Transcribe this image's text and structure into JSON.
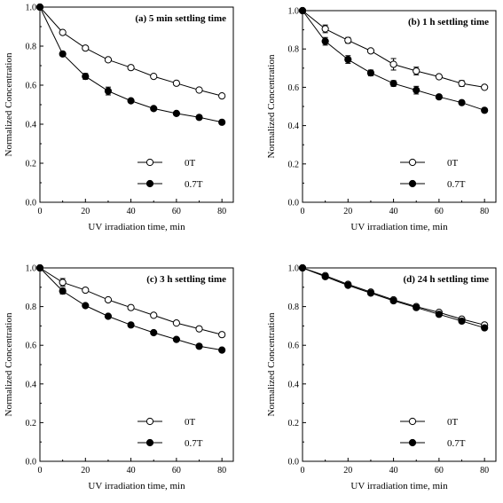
{
  "chart_data": [
    {
      "type": "line",
      "title": "(a) 5 min settling time",
      "xlabel": "UV irradiation time, min",
      "ylabel": "Normalized Concentration",
      "xlim": [
        0,
        85
      ],
      "ylim": [
        0,
        1.0
      ],
      "xticks": [
        "0",
        "20",
        "40",
        "60",
        "80"
      ],
      "yticks": [
        "0.0",
        "0.2",
        "0.4",
        "0.6",
        "0.8",
        "1.0"
      ],
      "x": [
        0,
        10,
        20,
        30,
        40,
        50,
        60,
        70,
        80
      ],
      "series": [
        {
          "name": "0T",
          "marker": "open-circle",
          "values": [
            1.0,
            0.87,
            0.79,
            0.73,
            0.69,
            0.645,
            0.61,
            0.575,
            0.545
          ],
          "errors": [
            0,
            0,
            0,
            0,
            0,
            0,
            0,
            0,
            0
          ]
        },
        {
          "name": "0.7T",
          "marker": "filled-circle",
          "values": [
            1.0,
            0.76,
            0.645,
            0.57,
            0.52,
            0.48,
            0.455,
            0.435,
            0.41
          ],
          "errors": [
            0,
            0,
            0.015,
            0.02,
            0,
            0,
            0,
            0,
            0
          ]
        }
      ],
      "legend_position": "bottom-right"
    },
    {
      "type": "line",
      "title": "(b) 1 h settling time",
      "xlabel": "UV irradiation time, min",
      "ylabel": "Normalized Concentration",
      "xlim": [
        0,
        85
      ],
      "ylim": [
        0,
        1.0
      ],
      "xticks": [
        "0",
        "20",
        "40",
        "60",
        "80"
      ],
      "yticks": [
        "0.0",
        "0.2",
        "0.4",
        "0.6",
        "0.8",
        "1.0"
      ],
      "x": [
        0,
        10,
        20,
        30,
        40,
        50,
        60,
        70,
        80
      ],
      "series": [
        {
          "name": "0T",
          "marker": "open-circle",
          "values": [
            1.0,
            0.905,
            0.845,
            0.79,
            0.72,
            0.685,
            0.655,
            0.62,
            0.6
          ],
          "errors": [
            0,
            0.02,
            0.015,
            0,
            0.03,
            0.02,
            0,
            0.015,
            0
          ]
        },
        {
          "name": "0.7T",
          "marker": "filled-circle",
          "values": [
            1.0,
            0.84,
            0.745,
            0.675,
            0.62,
            0.585,
            0.55,
            0.52,
            0.48
          ],
          "errors": [
            0,
            0.02,
            0.02,
            0.015,
            0.015,
            0.02,
            0,
            0,
            0
          ]
        }
      ],
      "legend_position": "bottom-right"
    },
    {
      "type": "line",
      "title": "(c) 3 h settling time",
      "xlabel": "UV irradiation time, min",
      "ylabel": "Normalized Concentration",
      "xlim": [
        0,
        85
      ],
      "ylim": [
        0,
        1.0
      ],
      "xticks": [
        "0",
        "20",
        "40",
        "60",
        "80"
      ],
      "yticks": [
        "0.0",
        "0.2",
        "0.4",
        "0.6",
        "0.8",
        "1.0"
      ],
      "x": [
        0,
        10,
        20,
        30,
        40,
        50,
        60,
        70,
        80
      ],
      "series": [
        {
          "name": "0T",
          "marker": "open-circle",
          "values": [
            1.0,
            0.925,
            0.885,
            0.835,
            0.795,
            0.755,
            0.715,
            0.685,
            0.655
          ],
          "errors": [
            0,
            0.02,
            0,
            0,
            0,
            0,
            0,
            0,
            0
          ]
        },
        {
          "name": "0.7T",
          "marker": "filled-circle",
          "values": [
            1.0,
            0.88,
            0.805,
            0.75,
            0.705,
            0.665,
            0.63,
            0.595,
            0.575
          ],
          "errors": [
            0,
            0.015,
            0,
            0,
            0,
            0,
            0,
            0,
            0
          ]
        }
      ],
      "legend_position": "bottom-right"
    },
    {
      "type": "line",
      "title": "(d) 24 h settling time",
      "xlabel": "UV irradiation time, min",
      "ylabel": "Normalized Concentration",
      "xlim": [
        0,
        85
      ],
      "ylim": [
        0,
        1.0
      ],
      "xticks": [
        "0",
        "20",
        "40",
        "60",
        "80"
      ],
      "yticks": [
        "0.0",
        "0.2",
        "0.4",
        "0.6",
        "0.8",
        "1.0"
      ],
      "x": [
        0,
        10,
        20,
        30,
        40,
        50,
        60,
        70,
        80
      ],
      "series": [
        {
          "name": "0T",
          "marker": "open-circle",
          "values": [
            1.0,
            0.96,
            0.915,
            0.875,
            0.835,
            0.8,
            0.77,
            0.735,
            0.705
          ],
          "errors": [
            0,
            0,
            0,
            0,
            0,
            0,
            0,
            0,
            0
          ]
        },
        {
          "name": "0.7T",
          "marker": "filled-circle",
          "values": [
            1.0,
            0.955,
            0.91,
            0.87,
            0.83,
            0.795,
            0.76,
            0.725,
            0.69
          ],
          "errors": [
            0,
            0,
            0,
            0,
            0,
            0,
            0,
            0,
            0
          ]
        }
      ],
      "legend_position": "bottom-right"
    }
  ]
}
